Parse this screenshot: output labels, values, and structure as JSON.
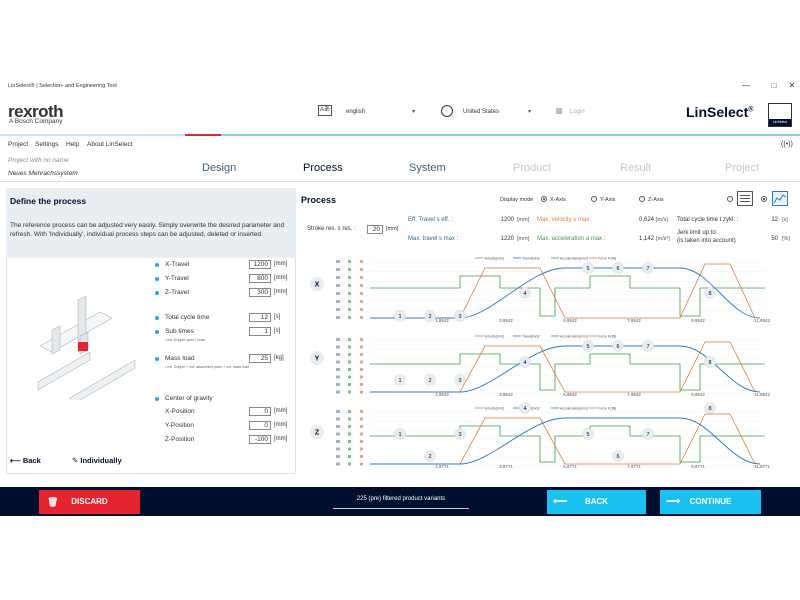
{
  "window": {
    "title": "LinSelect® | Selection- and Engineering Tool",
    "controls": {
      "minimize": "—",
      "maximize": "□",
      "close": "✕"
    }
  },
  "header": {
    "logo": "rexroth",
    "logo_sub": "A Bosch Company",
    "language": "english",
    "country": "United States",
    "login": "Login",
    "brand": "LinSelect",
    "brand_sup": "®",
    "brand_box": "LinSelect"
  },
  "menu": [
    "Project",
    "Settings",
    "Help",
    "About LinSelect"
  ],
  "project": {
    "name_placeholder": "Project with no name",
    "subtitle": "Neues Mehrachssystem"
  },
  "steps": [
    {
      "label": "Design",
      "state": "done"
    },
    {
      "label": "Process",
      "state": "active"
    },
    {
      "label": "System",
      "state": "done"
    },
    {
      "label": "Product",
      "state": "disabled"
    },
    {
      "label": "Result",
      "state": "disabled"
    },
    {
      "label": "Project",
      "state": "disabled"
    }
  ],
  "left": {
    "title": "Define the process",
    "description": "The reference process can be adjusted very easily. Simply overwrite the desired parameter and refresh. With 'Individually', individual process steps can be adjusted, deleted or inserted.",
    "params": {
      "x_travel": {
        "label": "X-Travel",
        "value": "1200",
        "unit": "[mm]"
      },
      "y_travel": {
        "label": "Y-Travel",
        "value": "800",
        "unit": "[mm]"
      },
      "z_travel": {
        "label": "Z-Travel",
        "value": "300",
        "unit": "[mm]"
      },
      "cycle": {
        "label": "Total cycle time",
        "value": "12",
        "unit": "[s]"
      },
      "subtimes": {
        "label": "Sub times",
        "value": "1",
        "unit": "[s]",
        "note": "• ext. Gripper open / close"
      },
      "mass": {
        "label": "Mass load",
        "value": "25",
        "unit": "[kg]",
        "note": "• ext. Gripper + ext. attachment parts + ext. mass load"
      },
      "cog": {
        "label": "Center of gravity"
      },
      "x_pos": {
        "label": "X-Position",
        "value": "0",
        "unit": "[mm]"
      },
      "y_pos": {
        "label": "Y-Position",
        "value": "0",
        "unit": "[mm]"
      },
      "z_pos": {
        "label": "Z-Position",
        "value": "-100",
        "unit": "[mm]"
      }
    },
    "back": "Back",
    "individually": "Individually"
  },
  "right": {
    "title": "Process",
    "display_mode": "Display mode",
    "modes": [
      "X-Axis",
      "Y-Axis",
      "Z-Axis"
    ],
    "stroke_label": "Stroke res. s res. :",
    "stroke_value": "20",
    "stroke_unit": "[mm]",
    "eff_travel": {
      "label": "Eff. Travel s eff. :",
      "value": "1200",
      "unit": "[mm]"
    },
    "max_travel": {
      "label": "Max. travel s max :",
      "value": "1220",
      "unit": "[mm]"
    },
    "max_velocity": {
      "label": "Max. velocity v max",
      "value": "0,624",
      "unit": "[m/s]"
    },
    "max_accel": {
      "label": "Max. acceleration a max :",
      "value": "1,142",
      "unit": "[m/s²]"
    },
    "cycle_time": {
      "label": "Total cycle time t zykl. :",
      "value": "12",
      "unit": "[s]"
    },
    "jerk": {
      "label": "Jerk limit up to:",
      "label2": "(is taken into account)",
      "value": "50",
      "unit": "[%]"
    }
  },
  "chart_data": [
    {
      "type": "line",
      "axis": "X",
      "legend": [
        "Velocity[m/s]",
        "Travel[mm]",
        "Acceleration[m/s²]",
        "Force Fx[N]"
      ],
      "x_ticks": [
        "1,9542",
        "3,9542",
        "5,9542",
        "7,9542",
        "9,9542",
        "11,9542"
      ],
      "x_unit": "[s]",
      "markers": [
        "1",
        "2",
        "3",
        "4",
        "5",
        "6",
        "7",
        "8"
      ]
    },
    {
      "type": "line",
      "axis": "Y",
      "legend": [
        "Velocity[m/s]",
        "Travel[mm]",
        "Acceleration[m/s²]",
        "Force Fy[N]"
      ],
      "x_ticks": [
        "1,9542",
        "3,9542",
        "5,9542",
        "7,9542",
        "9,9542",
        "11,9542"
      ],
      "markers": [
        "1",
        "2",
        "3",
        "4",
        "5",
        "6",
        "7",
        "8"
      ]
    },
    {
      "type": "line",
      "axis": "Z",
      "legend": [
        "Velocity[m/s]",
        "Travel[mm]",
        "Acceleration[m/s²]",
        "Force Fz[N]"
      ],
      "x_ticks": [
        "1,9771",
        "3,9771",
        "5,9771",
        "7,9771",
        "9,9771",
        "11,9771"
      ],
      "markers": [
        "1",
        "2",
        "3",
        "4",
        "5",
        "6",
        "7",
        "8"
      ]
    }
  ],
  "footer": {
    "discard": "DISCARD",
    "variants": "225 (pre) filtered product variants",
    "back": "BACK",
    "continue": "CONTINUE"
  },
  "colors": {
    "navy": "#000f2e",
    "cyan": "#19c0f0",
    "red": "#e4242e",
    "velocity": "#e07a3a",
    "travel": "#2b7bbf",
    "acceleration": "#3a9c4a"
  }
}
